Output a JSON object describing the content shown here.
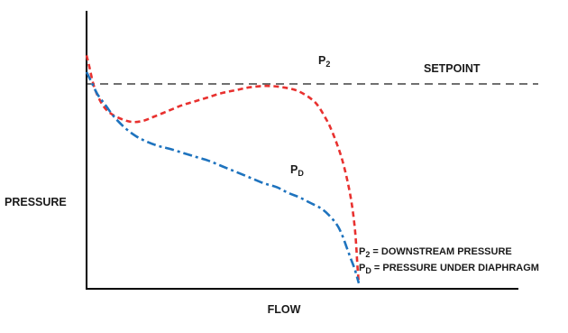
{
  "chart_data": {
    "type": "line",
    "xlabel": "FLOW",
    "ylabel": "PRESSURE",
    "grid": false,
    "setpoint_label": "SETPOINT",
    "colors": {
      "p2": "#e8312f",
      "pd": "#1e73be",
      "setpoint": "#1a1a1a",
      "axis": "#000000"
    },
    "series": [
      {
        "key": "p2",
        "label_main": "P",
        "label_sub": "2",
        "style": "dashed",
        "x": [
          0,
          1,
          3,
          6,
          9,
          13,
          17,
          21,
          25,
          30,
          35,
          40,
          45,
          50,
          55,
          60,
          66,
          72,
          78,
          84,
          88,
          90,
          92,
          94,
          96,
          97.5,
          98.5,
          99,
          99.5,
          100
        ],
        "y": [
          84,
          80,
          72,
          66,
          63,
          61,
          60,
          60.5,
          62,
          64,
          66,
          67.5,
          69,
          70.5,
          71.5,
          72.5,
          73,
          72.5,
          71,
          67,
          61,
          57,
          52,
          46,
          38,
          30,
          22,
          16,
          8,
          2
        ]
      },
      {
        "key": "pd",
        "label_main": "P",
        "label_sub": "D",
        "style": "dashdot",
        "x": [
          0,
          2,
          4,
          7,
          10,
          14,
          18,
          22,
          26,
          30,
          35,
          40,
          45,
          50,
          55,
          60,
          65,
          70,
          74,
          78,
          82,
          86,
          89,
          92,
          94,
          95.5,
          97,
          98.5,
          100
        ],
        "y": [
          78,
          74,
          70,
          66,
          62,
          58,
          55,
          53,
          51.5,
          50.5,
          49,
          47.5,
          46,
          44,
          42,
          40,
          38,
          36.5,
          34.5,
          33,
          31,
          29,
          26.5,
          23,
          19,
          15,
          11,
          7,
          2
        ]
      }
    ],
    "legend": [
      {
        "main": "P",
        "sub": "2",
        "text": " = DOWNSTREAM PRESSURE"
      },
      {
        "main": "P",
        "sub": "D",
        "text": " = PRESSURE UNDER DIAPHRAGM"
      }
    ]
  }
}
